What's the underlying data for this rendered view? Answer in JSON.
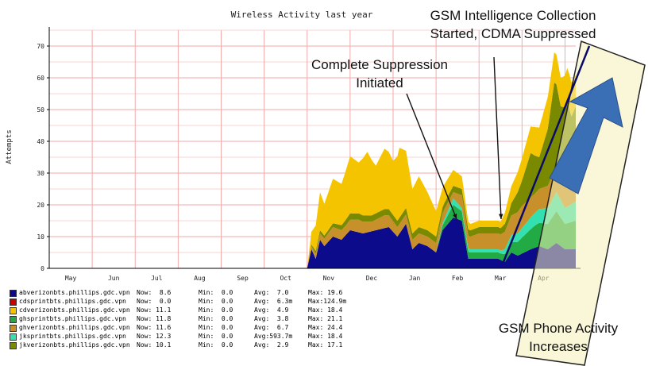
{
  "chart_data": {
    "type": "area",
    "title": "Wireless Activity last year",
    "ylabel": "Attempts",
    "xlabel": "",
    "ylim": [
      0,
      75
    ],
    "yticks": [
      0,
      10,
      20,
      30,
      40,
      50,
      60,
      70
    ],
    "grid": true,
    "months": [
      "May",
      "Jun",
      "Jul",
      "Aug",
      "Sep",
      "Oct",
      "Nov",
      "Dec",
      "Jan",
      "Feb",
      "Mar",
      "Apr"
    ],
    "x_range": [
      0,
      12.25
    ],
    "stack_order": [
      "abverizonbts",
      "ghsprintbts",
      "jksprintbts",
      "ghverizonbts",
      "jkverizonbts",
      "cdverizonbts"
    ],
    "series": [
      {
        "name": "abverizonbts.phillips.gdc.vpn",
        "key": "abverizonbts",
        "color": "#0b0b8c",
        "values": [
          [
            6.0,
            0
          ],
          [
            6.1,
            6
          ],
          [
            6.2,
            3
          ],
          [
            6.3,
            9
          ],
          [
            6.4,
            7
          ],
          [
            6.6,
            10
          ],
          [
            6.8,
            9
          ],
          [
            7.0,
            12
          ],
          [
            7.3,
            11
          ],
          [
            7.6,
            12
          ],
          [
            7.9,
            13
          ],
          [
            8.1,
            10
          ],
          [
            8.3,
            14
          ],
          [
            8.45,
            6
          ],
          [
            8.6,
            8
          ],
          [
            8.8,
            7
          ],
          [
            9.0,
            5
          ],
          [
            9.15,
            12
          ],
          [
            9.4,
            16
          ],
          [
            9.6,
            15
          ],
          [
            9.75,
            3
          ],
          [
            9.8,
            3
          ],
          [
            10.0,
            3
          ],
          [
            10.3,
            3
          ],
          [
            10.45,
            3
          ],
          [
            10.6,
            2
          ],
          [
            10.75,
            5
          ],
          [
            10.9,
            4
          ],
          [
            11.2,
            6
          ],
          [
            11.4,
            7
          ],
          [
            11.6,
            6
          ],
          [
            11.8,
            8
          ],
          [
            12.0,
            6
          ],
          [
            12.25,
            6
          ]
        ]
      },
      {
        "name": "cdsprintbts.phillips.gdc.vpn",
        "key": "cdsprintbts",
        "color": "#cc0000",
        "values": [
          [
            6.0,
            0
          ],
          [
            12.25,
            0
          ]
        ]
      },
      {
        "name": "cdverizonbts.phillips.gdc.vpn",
        "key": "cdverizonbts",
        "color": "#f5c400",
        "values": [
          [
            6.0,
            0
          ],
          [
            6.1,
            4
          ],
          [
            6.2,
            8
          ],
          [
            6.3,
            12
          ],
          [
            6.4,
            10
          ],
          [
            6.6,
            14
          ],
          [
            6.8,
            13
          ],
          [
            7.0,
            18
          ],
          [
            7.2,
            16
          ],
          [
            7.4,
            20
          ],
          [
            7.6,
            15
          ],
          [
            7.8,
            19
          ],
          [
            8.0,
            17
          ],
          [
            8.15,
            22
          ],
          [
            8.3,
            18
          ],
          [
            8.45,
            14
          ],
          [
            8.6,
            16
          ],
          [
            8.8,
            12
          ],
          [
            9.0,
            8
          ],
          [
            9.15,
            6
          ],
          [
            9.4,
            5
          ],
          [
            9.6,
            4
          ],
          [
            9.8,
            2
          ],
          [
            10.0,
            2
          ],
          [
            10.3,
            2
          ],
          [
            10.5,
            2
          ],
          [
            10.7,
            5
          ],
          [
            11.0,
            7
          ],
          [
            11.3,
            9
          ],
          [
            11.6,
            10
          ],
          [
            11.9,
            9
          ],
          [
            12.1,
            11
          ],
          [
            12.25,
            10
          ]
        ]
      },
      {
        "name": "ghsprintbts.phillips.gdc.vpn",
        "key": "ghsprintbts",
        "color": "#22aa44",
        "values": [
          [
            6.0,
            0
          ],
          [
            9.0,
            0
          ],
          [
            9.2,
            2
          ],
          [
            9.4,
            4
          ],
          [
            9.6,
            3
          ],
          [
            9.8,
            2
          ],
          [
            10.0,
            2
          ],
          [
            10.3,
            2
          ],
          [
            10.5,
            2
          ],
          [
            10.7,
            3
          ],
          [
            11.0,
            5
          ],
          [
            11.3,
            7
          ],
          [
            11.6,
            8
          ],
          [
            11.8,
            10
          ],
          [
            12.0,
            8
          ],
          [
            12.25,
            9
          ]
        ]
      },
      {
        "name": "ghverizonbts.phillips.gdc.vpn",
        "key": "ghverizonbts",
        "color": "#c8902a",
        "values": [
          [
            6.0,
            0
          ],
          [
            6.1,
            1
          ],
          [
            6.3,
            2
          ],
          [
            6.6,
            3
          ],
          [
            6.9,
            3
          ],
          [
            7.2,
            4
          ],
          [
            7.5,
            3
          ],
          [
            7.8,
            4
          ],
          [
            8.1,
            3
          ],
          [
            8.4,
            3
          ],
          [
            8.7,
            3
          ],
          [
            9.0,
            3
          ],
          [
            9.2,
            3
          ],
          [
            9.4,
            2
          ],
          [
            9.6,
            4
          ],
          [
            9.8,
            4
          ],
          [
            10.0,
            5
          ],
          [
            10.3,
            5
          ],
          [
            10.5,
            5
          ],
          [
            10.7,
            6
          ],
          [
            11.0,
            7
          ],
          [
            11.3,
            6
          ],
          [
            11.6,
            7
          ],
          [
            11.8,
            8
          ],
          [
            12.0,
            7
          ],
          [
            12.25,
            8
          ]
        ]
      },
      {
        "name": "jksprintbts.phillips.gdc.vpn",
        "key": "jksprintbts",
        "color": "#33e0b0",
        "values": [
          [
            6.0,
            0
          ],
          [
            9.0,
            0
          ],
          [
            9.2,
            1
          ],
          [
            9.4,
            2
          ],
          [
            9.6,
            1
          ],
          [
            10.0,
            1
          ],
          [
            10.5,
            1
          ],
          [
            10.7,
            2
          ],
          [
            11.0,
            3
          ],
          [
            11.3,
            4
          ],
          [
            11.6,
            5
          ],
          [
            11.8,
            6
          ],
          [
            12.0,
            5
          ],
          [
            12.25,
            6
          ]
        ]
      },
      {
        "name": "jkverizonbts.phillips.gdc.vpn",
        "key": "jkverizonbts",
        "color": "#7a8a00",
        "values": [
          [
            6.0,
            0
          ],
          [
            6.2,
            1
          ],
          [
            6.5,
            1
          ],
          [
            7.0,
            2
          ],
          [
            7.5,
            2
          ],
          [
            8.0,
            2
          ],
          [
            8.5,
            2
          ],
          [
            9.0,
            2
          ],
          [
            9.4,
            2
          ],
          [
            9.8,
            2
          ],
          [
            10.0,
            2
          ],
          [
            10.5,
            2
          ],
          [
            10.7,
            3
          ],
          [
            11.0,
            8
          ],
          [
            11.2,
            14
          ],
          [
            11.4,
            10
          ],
          [
            11.6,
            18
          ],
          [
            11.75,
            28
          ],
          [
            11.9,
            22
          ],
          [
            12.05,
            26
          ],
          [
            12.15,
            20
          ],
          [
            12.25,
            22
          ]
        ]
      }
    ]
  },
  "legend": [
    {
      "name": "abverizonbts.phillips.gdc.vpn",
      "color": "#0b0b8c",
      "now": "Now:  8.6",
      "min": "Min:  0.0",
      "avg": "Avg:  7.0",
      "max": "Max: 19.6"
    },
    {
      "name": "cdsprintbts.phillips.gdc.vpn",
      "color": "#cc0000",
      "now": "Now:  0.0",
      "min": "Min:  0.0",
      "avg": "Avg:  6.3m",
      "max": "Max:124.9m"
    },
    {
      "name": "cdverizonbts.phillips.gdc.vpn",
      "color": "#f5c400",
      "now": "Now: 11.1",
      "min": "Min:  0.0",
      "avg": "Avg:  4.9",
      "max": "Max: 18.4"
    },
    {
      "name": "ghsprintbts.phillips.gdc.vpn",
      "color": "#22aa44",
      "now": "Now: 11.8",
      "min": "Min:  0.0",
      "avg": "Avg:  3.8",
      "max": "Max: 21.1"
    },
    {
      "name": "ghverizonbts.phillips.gdc.vpn",
      "color": "#c8902a",
      "now": "Now: 11.6",
      "min": "Min:  0.0",
      "avg": "Avg:  6.7",
      "max": "Max: 24.4"
    },
    {
      "name": "jksprintbts.phillips.gdc.vpn",
      "color": "#33e0b0",
      "now": "Now: 12.3",
      "min": "Min:  0.0",
      "avg": "Avg:593.7m",
      "max": "Max: 18.4"
    },
    {
      "name": "jkverizonbts.phillips.gdc.vpn",
      "color": "#7a8a00",
      "now": "Now: 10.1",
      "min": "Min:  0.0",
      "avg": "Avg:  2.9",
      "max": "Max: 17.1"
    }
  ],
  "annotations": {
    "gsm_collection_line1": "GSM Intelligence Collection",
    "gsm_collection_line2": "Started, CDMA Suppressed",
    "suppression_line1": "Complete Suppression",
    "suppression_line2": "Initiated",
    "gsm_activity_line1": "GSM Phone Activity",
    "gsm_activity_line2": "Increases"
  },
  "colors": {
    "grid": "#f2aaaa",
    "arrow_fill": "#3a6fb5",
    "highlight_box": "#f4f0b8"
  }
}
